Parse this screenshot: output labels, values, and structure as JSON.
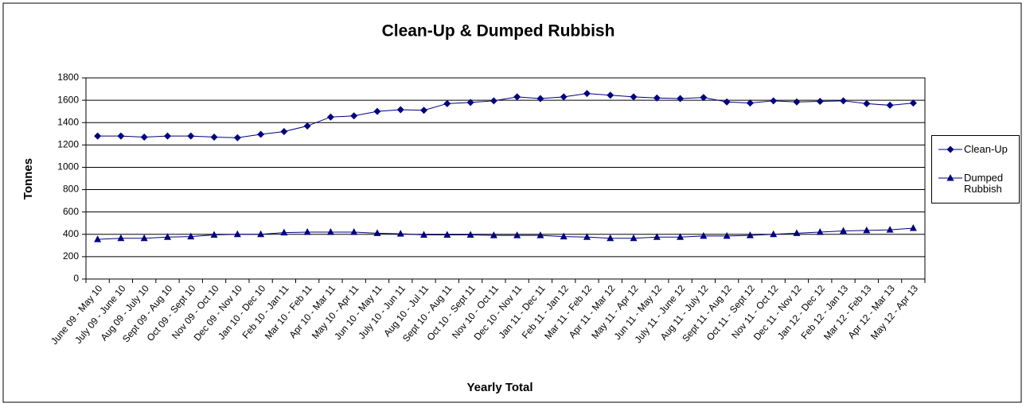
{
  "chart_data": {
    "type": "line",
    "title": "Clean-Up & Dumped Rubbish",
    "y_label": "Tonnes",
    "x_label": "Yearly Total",
    "categories": [
      "June 09 - May 10",
      "July 09 - June 10",
      "Aug 09 - July 10",
      "Sept 09 - Aug 10",
      "Oct 09 - Sept 10",
      "Nov 09 - Oct 10",
      "Dec 09 - Nov 10",
      "Jan 10 - Dec 10",
      "Feb 10 - Jan 11",
      "Mar 10 - Feb 11",
      "Apr 10 - Mar 11",
      "May 10 - Apr 11",
      "Jun 10 - May 11",
      "July 10 - Jun 11",
      "Aug 10 - Jul 11",
      "Sept 10 - Aug 11",
      "Oct 10 - Sept 11",
      "Nov 10 - Oct 11",
      "Dec 10 - Nov 11",
      "Jan 11 - Dec 11",
      "Feb 11 - Jan 12",
      "Mar 11 - Feb 12",
      "Apr 11 - Mar 12",
      "May 11 - Apr 12",
      "Jun 11 - May 12",
      "July 11 - June 12",
      "Aug 11 - July 12",
      "Sept 11 - Aug 12",
      "Oct 11 - Sept 12",
      "Nov 11 - Oct 12",
      "Dec 11 - Nov 12",
      "Jan 12 - Dec 12",
      "Feb 12 - Jan 13",
      "Mar 12 - Feb 13",
      "Apr 12 - Mar 13",
      "May 12 - Apr 13"
    ],
    "series": [
      {
        "name": "Clean-Up",
        "color": "#000080",
        "marker": "diamond",
        "values": [
          1280,
          1280,
          1270,
          1280,
          1280,
          1270,
          1265,
          1295,
          1320,
          1370,
          1450,
          1460,
          1500,
          1515,
          1510,
          1570,
          1580,
          1595,
          1630,
          1615,
          1630,
          1660,
          1645,
          1630,
          1620,
          1615,
          1625,
          1585,
          1575,
          1595,
          1585,
          1590,
          1595,
          1570,
          1555,
          1575
        ]
      },
      {
        "name": "Dumped Rubbish",
        "color": "#000080",
        "marker": "triangle",
        "values": [
          355,
          365,
          365,
          375,
          380,
          395,
          400,
          400,
          415,
          420,
          420,
          420,
          410,
          405,
          395,
          395,
          395,
          390,
          390,
          390,
          380,
          375,
          365,
          365,
          375,
          375,
          385,
          385,
          390,
          400,
          410,
          420,
          430,
          435,
          440,
          455
        ]
      }
    ],
    "ylim": [
      0,
      1800
    ],
    "yticks": [
      0,
      200,
      400,
      600,
      800,
      1000,
      1200,
      1400,
      1600,
      1800
    ],
    "grid": true,
    "legend": "right"
  }
}
